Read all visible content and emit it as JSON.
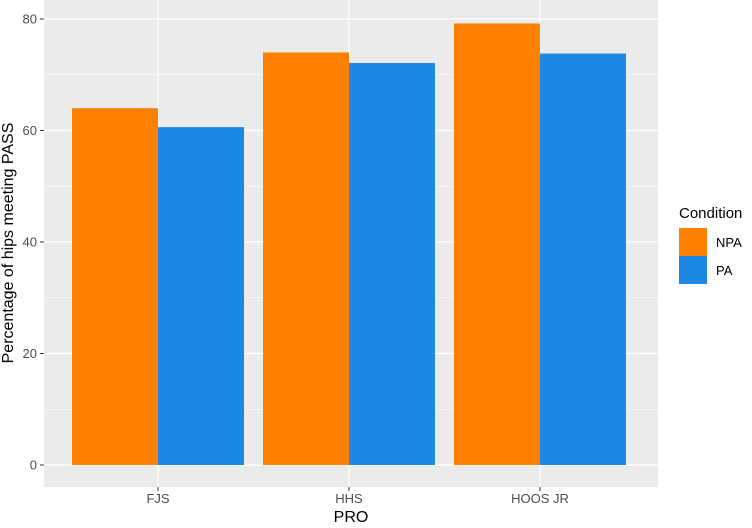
{
  "chart_data": {
    "type": "bar",
    "categories": [
      "FJS",
      "HHS",
      "HOOS JR"
    ],
    "series": [
      {
        "name": "NPA",
        "color": "#FF7F00",
        "values": [
          64,
          74,
          79.2
        ]
      },
      {
        "name": "PA",
        "color": "#1E88E5",
        "values": [
          60.6,
          72.1,
          73.8
        ]
      }
    ],
    "xlabel": "PRO",
    "ylabel": "Percentage of hips meeting PASS",
    "ylim": [
      0,
      83
    ],
    "yticks": [
      0,
      20,
      40,
      60,
      80
    ],
    "grid": true,
    "legend": {
      "title": "Condition",
      "position": "right"
    },
    "panel_background": "#EBEBEB",
    "grid_color": "#FFFFFF"
  }
}
